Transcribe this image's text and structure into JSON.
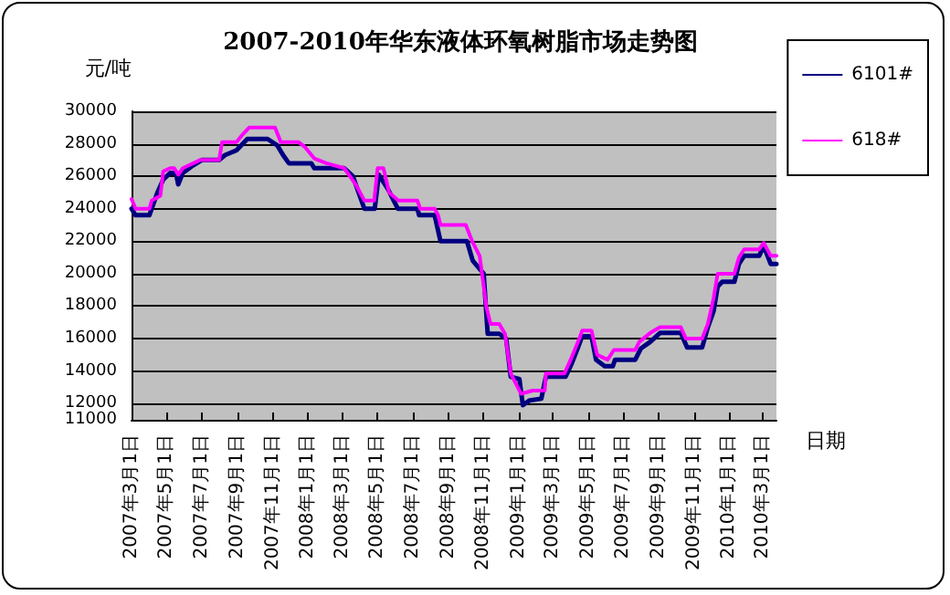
{
  "chart_data": {
    "type": "line",
    "title": "2007-2010年华东液体环氧树脂市场走势图",
    "xlabel": "日期",
    "ylabel": "元/吨",
    "xlim": [
      "2007-03-01",
      "2010-03-24"
    ],
    "xticks": [
      {
        "value": "2007-03-01",
        "label": "2007年3月1日"
      },
      {
        "value": "2007-05-01",
        "label": "2007年5月1日"
      },
      {
        "value": "2007-07-01",
        "label": "2007年7月1日"
      },
      {
        "value": "2007-09-01",
        "label": "2007年9月1日"
      },
      {
        "value": "2007-11-01",
        "label": "2007年11月1日"
      },
      {
        "value": "2008-01-01",
        "label": "2008年1月1日"
      },
      {
        "value": "2008-03-01",
        "label": "2008年3月1日"
      },
      {
        "value": "2008-05-01",
        "label": "2008年5月1日"
      },
      {
        "value": "2008-07-01",
        "label": "2008年7月1日"
      },
      {
        "value": "2008-09-01",
        "label": "2008年9月1日"
      },
      {
        "value": "2008-11-01",
        "label": "2008年11月1日"
      },
      {
        "value": "2009-01-01",
        "label": "2009年1月1日"
      },
      {
        "value": "2009-03-01",
        "label": "2009年3月1日"
      },
      {
        "value": "2009-05-01",
        "label": "2009年5月1日"
      },
      {
        "value": "2009-07-01",
        "label": "2009年7月1日"
      },
      {
        "value": "2009-09-01",
        "label": "2009年9月1日"
      },
      {
        "value": "2009-11-01",
        "label": "2009年11月1日"
      },
      {
        "value": "2010-01-01",
        "label": "2010年1月1日"
      },
      {
        "value": "2010-03-01",
        "label": "2010年3月1日"
      }
    ],
    "ylim": [
      11000,
      30000
    ],
    "yticks": [
      11000,
      12000,
      14000,
      16000,
      18000,
      20000,
      22000,
      24000,
      26000,
      28000,
      30000
    ],
    "grid": "y",
    "legend": "top right",
    "marker": "none",
    "series": [
      {
        "name": "6101#",
        "color": "#000080",
        "x": [
          "2007-03-01",
          "2007-03-08",
          "2007-04-01",
          "2007-04-05",
          "2007-04-15",
          "2007-04-25",
          "2007-05-07",
          "2007-05-17",
          "2007-05-21",
          "2007-05-29",
          "2007-06-13",
          "2007-07-01",
          "2007-07-31",
          "2007-08-10",
          "2007-08-30",
          "2007-09-18",
          "2007-10-23",
          "2007-11-09",
          "2007-11-19",
          "2007-11-29",
          "2008-01-07",
          "2008-01-12",
          "2008-03-04",
          "2008-03-19",
          "2008-03-29",
          "2008-04-08",
          "2008-04-26",
          "2008-05-03",
          "2008-05-19",
          "2008-06-05",
          "2008-07-09",
          "2008-07-12",
          "2008-08-08",
          "2008-08-18",
          "2008-10-03",
          "2008-10-13",
          "2008-11-01",
          "2008-11-08",
          "2008-11-28",
          "2008-12-10",
          "2008-12-18",
          "2009-01-02",
          "2009-01-08",
          "2009-01-20",
          "2009-02-09",
          "2009-02-17",
          "2009-03-23",
          "2009-04-02",
          "2009-04-13",
          "2009-04-21",
          "2009-05-07",
          "2009-05-15",
          "2009-05-30",
          "2009-06-13",
          "2009-06-17",
          "2009-07-22",
          "2009-08-01",
          "2009-08-17",
          "2009-09-03",
          "2009-10-09",
          "2009-10-20",
          "2009-11-15",
          "2009-11-25",
          "2009-12-05",
          "2009-12-12",
          "2009-12-20",
          "2010-01-10",
          "2010-01-18",
          "2010-01-27",
          "2010-02-22",
          "2010-03-02",
          "2010-03-14",
          "2010-03-24"
        ],
        "values": [
          24000,
          23600,
          23600,
          24000,
          25000,
          25800,
          26200,
          26200,
          25500,
          26200,
          26600,
          27000,
          27000,
          27300,
          27600,
          28300,
          28300,
          27900,
          27300,
          26800,
          26800,
          26500,
          26500,
          26000,
          25000,
          24000,
          24000,
          26100,
          25200,
          24000,
          24000,
          23600,
          23600,
          22000,
          22000,
          20800,
          20000,
          16300,
          16300,
          16000,
          13650,
          13500,
          11900,
          12200,
          12300,
          13650,
          13650,
          14400,
          15400,
          16150,
          16150,
          14700,
          14300,
          14300,
          14700,
          14700,
          15400,
          15800,
          16350,
          16350,
          15450,
          15450,
          16700,
          17700,
          19200,
          19500,
          19500,
          20600,
          21100,
          21100,
          21700,
          20600,
          20600
        ]
      },
      {
        "name": "618#",
        "color": "#ff00ff",
        "x": [
          "2007-03-01",
          "2007-03-08",
          "2007-04-01",
          "2007-04-05",
          "2007-04-20",
          "2007-04-25",
          "2007-05-07",
          "2007-05-14",
          "2007-05-21",
          "2007-05-29",
          "2007-06-28",
          "2007-07-31",
          "2007-08-05",
          "2007-08-30",
          "2007-09-08",
          "2007-09-21",
          "2007-11-05",
          "2007-11-15",
          "2007-12-16",
          "2007-12-27",
          "2008-01-12",
          "2008-02-02",
          "2008-03-04",
          "2008-03-24",
          "2008-04-08",
          "2008-04-25",
          "2008-05-01",
          "2008-05-11",
          "2008-05-21",
          "2008-06-06",
          "2008-07-09",
          "2008-07-14",
          "2008-08-08",
          "2008-08-14",
          "2008-08-18",
          "2008-10-01",
          "2008-10-12",
          "2008-10-25",
          "2008-11-06",
          "2008-11-13",
          "2008-11-28",
          "2008-12-08",
          "2008-12-18",
          "2009-01-05",
          "2009-01-25",
          "2009-02-15",
          "2009-02-17",
          "2009-03-21",
          "2009-04-01",
          "2009-04-16",
          "2009-04-21",
          "2009-05-07",
          "2009-05-17",
          "2009-06-04",
          "2009-06-15",
          "2009-07-22",
          "2009-07-29",
          "2009-08-17",
          "2009-09-03",
          "2009-10-09",
          "2009-10-18",
          "2009-11-15",
          "2009-11-25",
          "2009-12-05",
          "2009-12-12",
          "2010-01-10",
          "2010-01-18",
          "2010-01-27",
          "2010-02-22",
          "2010-03-02",
          "2010-03-14",
          "2010-03-24"
        ],
        "values": [
          24600,
          24000,
          24000,
          24500,
          24800,
          26300,
          26500,
          26500,
          26100,
          26500,
          27000,
          27000,
          28100,
          28100,
          28500,
          29000,
          29000,
          28100,
          28100,
          27800,
          27100,
          26800,
          26500,
          25500,
          24500,
          24500,
          26500,
          26500,
          25000,
          24500,
          24500,
          24000,
          24000,
          23600,
          23000,
          23000,
          22000,
          21100,
          17900,
          16900,
          16900,
          16300,
          13850,
          12600,
          12800,
          12800,
          13850,
          13850,
          14700,
          16000,
          16500,
          16500,
          15000,
          14700,
          15300,
          15300,
          15800,
          16350,
          16700,
          16700,
          16000,
          16000,
          16900,
          18500,
          20000,
          20000,
          21000,
          21500,
          21500,
          21900,
          21100,
          21100
        ]
      }
    ]
  }
}
